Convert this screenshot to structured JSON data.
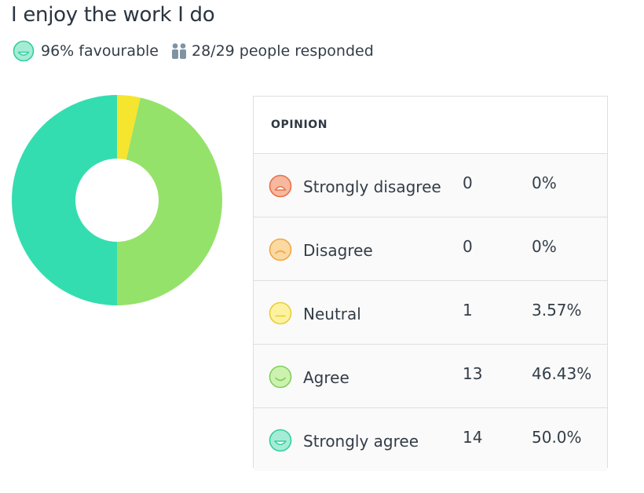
{
  "page": {
    "title": "I enjoy the work I do"
  },
  "summary": {
    "favourable_text": "96% favourable",
    "responded_text": "28/29 people responded",
    "favourable_icon": "happy-face-icon",
    "responded_icon": "people-icon"
  },
  "table": {
    "header": "OPINION",
    "rows": [
      {
        "label": "Strongly disagree",
        "count": "0",
        "percent": "0%",
        "icon": "very-sad-face-icon",
        "fill": "#f6b89e",
        "stroke": "#e8704a"
      },
      {
        "label": "Disagree",
        "count": "0",
        "percent": "0%",
        "icon": "sad-face-icon",
        "fill": "#fbd9a0",
        "stroke": "#f0a744"
      },
      {
        "label": "Neutral",
        "count": "1",
        "percent": "3.57%",
        "icon": "neutral-face-icon",
        "fill": "#fdf2a0",
        "stroke": "#e8cd3a"
      },
      {
        "label": "Agree",
        "count": "13",
        "percent": "46.43%",
        "icon": "smile-face-icon",
        "fill": "#cdf2b0",
        "stroke": "#7fd05a"
      },
      {
        "label": "Strongly agree",
        "count": "14",
        "percent": "50.0%",
        "icon": "happy-face-icon",
        "fill": "#a6ecd4",
        "stroke": "#2fcf9f"
      }
    ]
  },
  "chart_data": {
    "type": "pie",
    "donut": true,
    "categories": [
      "Strongly disagree",
      "Disagree",
      "Neutral",
      "Agree",
      "Strongly agree"
    ],
    "values": [
      0,
      0,
      1,
      13,
      14
    ],
    "colors": [
      "#f08a5d",
      "#f8b653",
      "#f5e52e",
      "#95e26a",
      "#34ddb0"
    ],
    "title": "",
    "legend": "none"
  }
}
